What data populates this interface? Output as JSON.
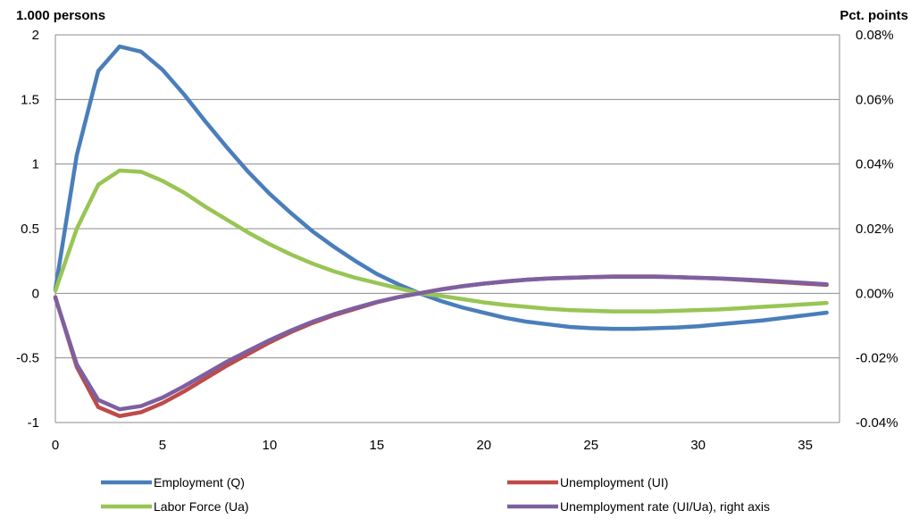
{
  "chart_data": {
    "type": "line",
    "left_axis_label": "1.000 persons",
    "right_axis_label": "Pct. points",
    "x_ticks": [
      "0",
      "5",
      "10",
      "15",
      "20",
      "25",
      "30",
      "35"
    ],
    "y_left_ticks": [
      "2",
      "1.5",
      "1",
      "0.5",
      "0",
      "-0.5",
      "-1"
    ],
    "y_right_ticks": [
      "0.08%",
      "0.06%",
      "0.04%",
      "0.02%",
      "0.00%",
      "-0.02%",
      "-0.04%"
    ],
    "xlim": [
      0,
      36.6
    ],
    "ylim_left": [
      -1,
      2
    ],
    "ylim_right": [
      -0.04,
      0.08
    ],
    "x": [
      0,
      1,
      2,
      3,
      4,
      5,
      6,
      7,
      8,
      9,
      10,
      11,
      12,
      13,
      14,
      15,
      16,
      17,
      18,
      19,
      20,
      21,
      22,
      23,
      24,
      25,
      26,
      27,
      28,
      29,
      30,
      31,
      32,
      33,
      34,
      35,
      36
    ],
    "series": [
      {
        "name": "Employment (Q)",
        "axis": "left",
        "color": "#4a7ebb",
        "values": [
          0.03,
          1.07,
          1.72,
          1.91,
          1.87,
          1.73,
          1.54,
          1.33,
          1.13,
          0.94,
          0.77,
          0.62,
          0.48,
          0.36,
          0.25,
          0.15,
          0.07,
          0.0,
          -0.06,
          -0.11,
          -0.15,
          -0.19,
          -0.22,
          -0.24,
          -0.26,
          -0.27,
          -0.275,
          -0.275,
          -0.27,
          -0.265,
          -0.255,
          -0.24,
          -0.225,
          -0.21,
          -0.19,
          -0.17,
          -0.15
        ]
      },
      {
        "name": "Unemployment (UI)",
        "axis": "left",
        "color": "#be4b48",
        "values": [
          -0.03,
          -0.57,
          -0.88,
          -0.95,
          -0.92,
          -0.85,
          -0.76,
          -0.66,
          -0.56,
          -0.47,
          -0.38,
          -0.3,
          -0.23,
          -0.17,
          -0.12,
          -0.07,
          -0.03,
          0.0,
          0.03,
          0.055,
          0.075,
          0.09,
          0.105,
          0.115,
          0.12,
          0.125,
          0.13,
          0.13,
          0.13,
          0.125,
          0.12,
          0.115,
          0.105,
          0.095,
          0.085,
          0.075,
          0.065
        ]
      },
      {
        "name": "Labor Force (Ua)",
        "axis": "left",
        "color": "#98c554",
        "values": [
          0.02,
          0.5,
          0.84,
          0.95,
          0.94,
          0.87,
          0.78,
          0.67,
          0.57,
          0.47,
          0.38,
          0.3,
          0.23,
          0.17,
          0.12,
          0.08,
          0.04,
          0.0,
          -0.02,
          -0.045,
          -0.07,
          -0.09,
          -0.105,
          -0.12,
          -0.13,
          -0.135,
          -0.14,
          -0.14,
          -0.14,
          -0.135,
          -0.13,
          -0.125,
          -0.115,
          -0.105,
          -0.095,
          -0.085,
          -0.075
        ]
      },
      {
        "name": "Unemployment rate (UI/Ua), right axis",
        "axis": "right",
        "color": "#7d60a0",
        "values": [
          -0.0014,
          -0.022,
          -0.033,
          -0.0359,
          -0.0349,
          -0.0323,
          -0.0288,
          -0.025,
          -0.0212,
          -0.0178,
          -0.0145,
          -0.0115,
          -0.0088,
          -0.0065,
          -0.0045,
          -0.0027,
          -0.0012,
          0.0,
          0.0012,
          0.0022,
          0.003,
          0.0037,
          0.0042,
          0.0046,
          0.0048,
          0.005,
          0.0051,
          0.0051,
          0.0051,
          0.005,
          0.0048,
          0.0046,
          0.0043,
          0.004,
          0.0036,
          0.0032,
          0.0028
        ]
      }
    ],
    "grid": true,
    "legend_position": "bottom"
  }
}
